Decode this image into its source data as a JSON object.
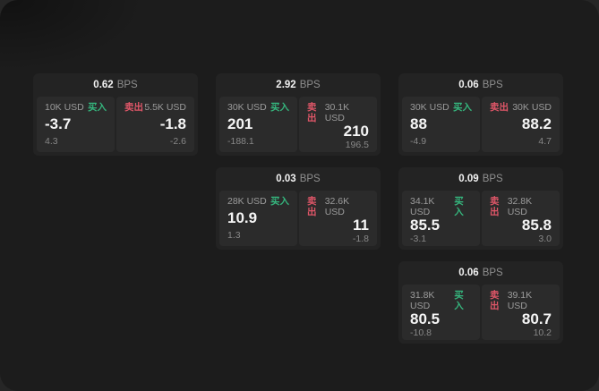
{
  "labels": {
    "bps_unit": "BPS",
    "buy": "买入",
    "sell": "卖出"
  },
  "colors": {
    "buy_green": "#35b57d",
    "sell_red": "#df5668",
    "panel_bg": "#1c1c1c",
    "card_bg": "#232323",
    "tile_bg": "#2b2b2b"
  },
  "columns": [
    {
      "cards": [
        {
          "bps": "0.62",
          "buy": {
            "size": "10K USD",
            "value": "-3.7",
            "sub": "4.3"
          },
          "sell": {
            "size": "5.5K USD",
            "value": "-1.8",
            "sub": "-2.6"
          }
        }
      ]
    },
    {
      "cards": [
        {
          "bps": "2.92",
          "buy": {
            "size": "30K USD",
            "value": "201",
            "sub": "-188.1"
          },
          "sell": {
            "size": "30.1K USD",
            "value": "210",
            "sub": "196.5"
          }
        },
        {
          "bps": "0.03",
          "buy": {
            "size": "28K USD",
            "value": "10.9",
            "sub": "1.3"
          },
          "sell": {
            "size": "32.6K USD",
            "value": "11",
            "sub": "-1.8"
          }
        }
      ]
    },
    {
      "cards": [
        {
          "bps": "0.06",
          "buy": {
            "size": "30K USD",
            "value": "88",
            "sub": "-4.9"
          },
          "sell": {
            "size": "30K USD",
            "value": "88.2",
            "sub": "4.7"
          }
        },
        {
          "bps": "0.09",
          "buy": {
            "size": "34.1K USD",
            "value": "85.5",
            "sub": "-3.1"
          },
          "sell": {
            "size": "32.8K USD",
            "value": "85.8",
            "sub": "3.0"
          }
        },
        {
          "bps": "0.06",
          "buy": {
            "size": "31.8K USD",
            "value": "80.5",
            "sub": "-10.8"
          },
          "sell": {
            "size": "39.1K USD",
            "value": "80.7",
            "sub": "10.2"
          }
        }
      ]
    }
  ]
}
